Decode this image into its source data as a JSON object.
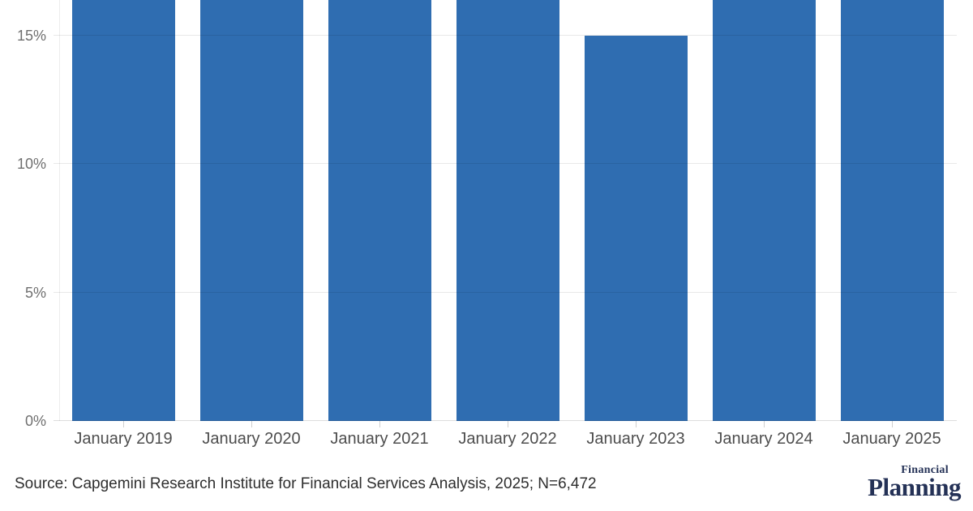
{
  "chart_data": {
    "type": "bar",
    "title": "",
    "categories": [
      "January 2019",
      "January 2020",
      "January 2021",
      "January 2022",
      "January 2023",
      "January 2024",
      "January 2025"
    ],
    "values": [
      16.4,
      16.4,
      16.4,
      16.4,
      15,
      16.4,
      16.4
    ],
    "clipped_at_top": [
      true,
      true,
      true,
      true,
      false,
      true,
      true
    ],
    "note": "Chart is cropped at the top edge of the image: every bar except January 2023 extends beyond the visible area (visible portion tops out at ~16.4%). The January 2023 bar top sits exactly on the 15% gridline.",
    "xlabel": "",
    "ylabel": "",
    "y_ticks": [
      0,
      5,
      10,
      15
    ],
    "y_tick_labels": [
      "0%",
      "5%",
      "10%",
      "15%"
    ],
    "ylim_visible": [
      0,
      16.35
    ],
    "grid": true,
    "legend": "none",
    "bar_color": "#2f6db1"
  },
  "footer": {
    "source": "Source: Capgemini Research Institute for Financial Services Analysis, 2025; N=6,472",
    "logo": {
      "top": "Financial",
      "main": "Planning"
    }
  },
  "colors": {
    "bar": "#2f6db1",
    "gridline": "#e9e9e9",
    "axis_label": "#6f6f6f",
    "category_label": "#4d4d4d",
    "source_text": "#2e2e2e",
    "logo_navy": "#243156",
    "background": "#ffffff"
  }
}
